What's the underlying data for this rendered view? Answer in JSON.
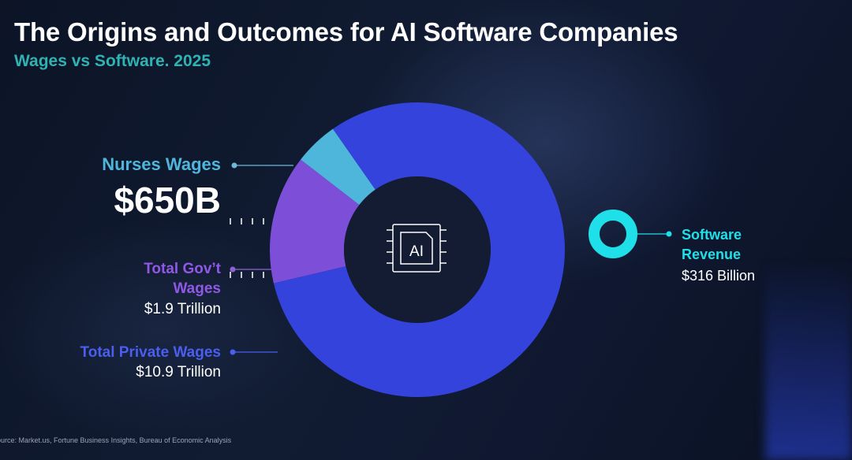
{
  "chart_data": {
    "type": "pie",
    "title": "The Origins and Outcomes for AI Software Companies",
    "subtitle": "Wages vs Software. 2025",
    "series": [
      {
        "name": "Nurses Wages",
        "value_billions": 650,
        "display_value": "$650B",
        "color": "#4fb6db"
      },
      {
        "name": "Total Gov’t Wages",
        "value_billions": 1900,
        "display_value": "$1.9 Trillion",
        "color": "#7d4fd8"
      },
      {
        "name": "Total Private Wages",
        "value_billions": 10900,
        "display_value": "$10.9 Trillion",
        "color": "#3343dc"
      }
    ],
    "comparison": {
      "name": "Software Revenue",
      "value_billions": 316,
      "display_value": "$316 Billion",
      "color": "#1fe0e8"
    },
    "center_label": "AI",
    "source": "ource: Market.us, Fortune Business Insights, Bureau of Economic Analysis"
  }
}
